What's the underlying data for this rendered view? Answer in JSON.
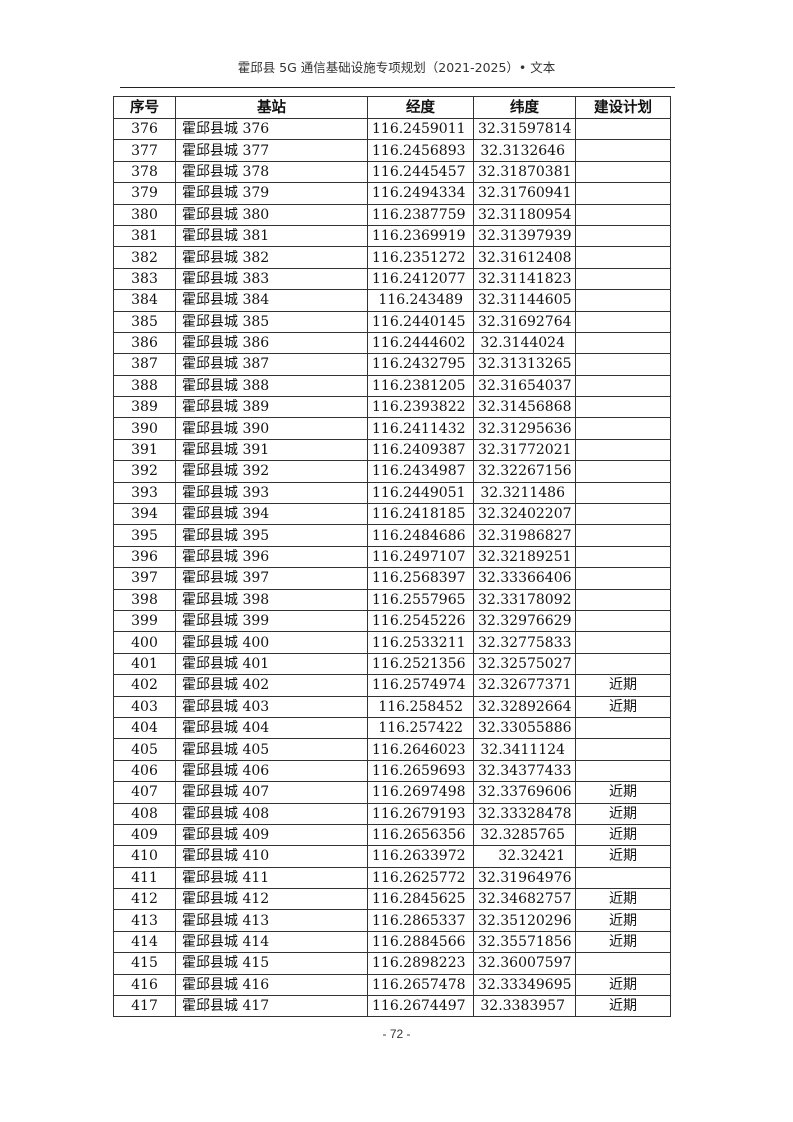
{
  "header": {
    "title": "霍邱县 5G 通信基础设施专项规划（2021-2025）• 文本"
  },
  "table": {
    "columns": [
      "序号",
      "基站",
      "经度",
      "纬度",
      "建设计划"
    ],
    "rows": [
      [
        "376",
        "霍邱县城 376",
        "116.2459011",
        "32.31597814",
        ""
      ],
      [
        "377",
        "霍邱县城 377",
        "116.2456893",
        "32.3132646",
        ""
      ],
      [
        "378",
        "霍邱县城 378",
        "116.2445457",
        "32.31870381",
        ""
      ],
      [
        "379",
        "霍邱县城 379",
        "116.2494334",
        "32.31760941",
        ""
      ],
      [
        "380",
        "霍邱县城 380",
        "116.2387759",
        "32.31180954",
        ""
      ],
      [
        "381",
        "霍邱县城 381",
        "116.2369919",
        "32.31397939",
        ""
      ],
      [
        "382",
        "霍邱县城 382",
        "116.2351272",
        "32.31612408",
        ""
      ],
      [
        "383",
        "霍邱县城 383",
        "116.2412077",
        "32.31141823",
        ""
      ],
      [
        "384",
        "霍邱县城 384",
        "116.243489",
        "32.31144605",
        ""
      ],
      [
        "385",
        "霍邱县城 385",
        "116.2440145",
        "32.31692764",
        ""
      ],
      [
        "386",
        "霍邱县城 386",
        "116.2444602",
        "32.3144024",
        ""
      ],
      [
        "387",
        "霍邱县城 387",
        "116.2432795",
        "32.31313265",
        ""
      ],
      [
        "388",
        "霍邱县城 388",
        "116.2381205",
        "32.31654037",
        ""
      ],
      [
        "389",
        "霍邱县城 389",
        "116.2393822",
        "32.31456868",
        ""
      ],
      [
        "390",
        "霍邱县城 390",
        "116.2411432",
        "32.31295636",
        ""
      ],
      [
        "391",
        "霍邱县城 391",
        "116.2409387",
        "32.31772021",
        ""
      ],
      [
        "392",
        "霍邱县城 392",
        "116.2434987",
        "32.32267156",
        ""
      ],
      [
        "393",
        "霍邱县城 393",
        "116.2449051",
        "32.3211486",
        ""
      ],
      [
        "394",
        "霍邱县城 394",
        "116.2418185",
        "32.32402207",
        ""
      ],
      [
        "395",
        "霍邱县城 395",
        "116.2484686",
        "32.31986827",
        ""
      ],
      [
        "396",
        "霍邱县城 396",
        "116.2497107",
        "32.32189251",
        ""
      ],
      [
        "397",
        "霍邱县城 397",
        "116.2568397",
        "32.33366406",
        ""
      ],
      [
        "398",
        "霍邱县城 398",
        "116.2557965",
        "32.33178092",
        ""
      ],
      [
        "399",
        "霍邱县城 399",
        "116.2545226",
        "32.32976629",
        ""
      ],
      [
        "400",
        "霍邱县城 400",
        "116.2533211",
        "32.32775833",
        ""
      ],
      [
        "401",
        "霍邱县城 401",
        "116.2521356",
        "32.32575027",
        ""
      ],
      [
        "402",
        "霍邱县城 402",
        "116.2574974",
        "32.32677371",
        "近期"
      ],
      [
        "403",
        "霍邱县城 403",
        "116.258452",
        "32.32892664",
        "近期"
      ],
      [
        "404",
        "霍邱县城 404",
        "116.257422",
        "32.33055886",
        ""
      ],
      [
        "405",
        "霍邱县城 405",
        "116.2646023",
        "32.3411124",
        ""
      ],
      [
        "406",
        "霍邱县城 406",
        "116.2659693",
        "32.34377433",
        ""
      ],
      [
        "407",
        "霍邱县城 407",
        "116.2697498",
        "32.33769606",
        "近期"
      ],
      [
        "408",
        "霍邱县城 408",
        "116.2679193",
        "32.33328478",
        "近期"
      ],
      [
        "409",
        "霍邱县城 409",
        "116.2656356",
        "32.3285765",
        "近期"
      ],
      [
        "410",
        "霍邱县城 410",
        "116.2633972",
        "32.32421",
        "近期"
      ],
      [
        "411",
        "霍邱县城 411",
        "116.2625772",
        "32.31964976",
        ""
      ],
      [
        "412",
        "霍邱县城 412",
        "116.2845625",
        "32.34682757",
        "近期"
      ],
      [
        "413",
        "霍邱县城 413",
        "116.2865337",
        "32.35120296",
        "近期"
      ],
      [
        "414",
        "霍邱县城 414",
        "116.2884566",
        "32.35571856",
        "近期"
      ],
      [
        "415",
        "霍邱县城 415",
        "116.2898223",
        "32.36007597",
        ""
      ],
      [
        "416",
        "霍邱县城 416",
        "116.2657478",
        "32.33349695",
        "近期"
      ],
      [
        "417",
        "霍邱县城 417",
        "116.2674497",
        "32.3383957",
        "近期"
      ]
    ]
  },
  "footer": {
    "page_number": "- 72 -"
  }
}
